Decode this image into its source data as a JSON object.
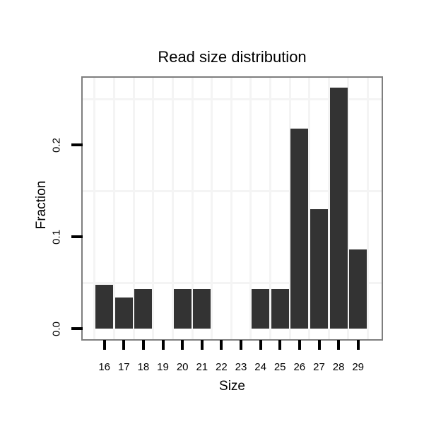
{
  "chart_data": {
    "type": "bar",
    "title": "Read size distribution",
    "xlabel": "Size",
    "ylabel": "Fraction",
    "categories": [
      "16",
      "17",
      "18",
      "19",
      "20",
      "21",
      "22",
      "23",
      "24",
      "25",
      "26",
      "27",
      "28",
      "29"
    ],
    "values": [
      0.048,
      0.034,
      0.043,
      0,
      0.043,
      0.043,
      0,
      0,
      0.043,
      0.043,
      0.218,
      0.13,
      0.262,
      0.086
    ],
    "yticks": [
      {
        "value": 0.0,
        "label": "0.0"
      },
      {
        "value": 0.1,
        "label": "0.1"
      },
      {
        "value": 0.2,
        "label": "0.2"
      }
    ],
    "minor_gridlines_y": [
      0.05,
      0.15,
      0.25
    ],
    "ylim": [
      -0.012,
      0.273
    ],
    "grid": "minor gridlines only, very light grey",
    "legend_position": "none",
    "colors": {
      "bar_fill": "#333333",
      "gridline": "#f4f4f4",
      "panel_border": "#7e7e7e",
      "tick": "#000000",
      "text": "#000000",
      "background": "#ffffff"
    }
  }
}
